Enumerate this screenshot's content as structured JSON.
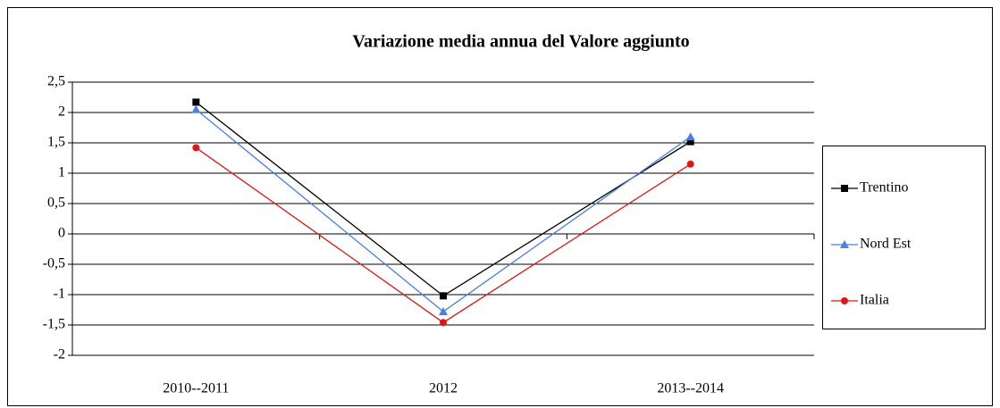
{
  "chart_data": {
    "type": "line",
    "title": "Variazione media annua del Valore aggiunto",
    "categories": [
      "2010--2011",
      "2012",
      "2013--2014"
    ],
    "series": [
      {
        "name": "Trentino",
        "color": "#000000",
        "marker": "square",
        "values": [
          2.17,
          -1.02,
          1.52
        ]
      },
      {
        "name": "Nord Est",
        "color": "#4a7fe6",
        "marker": "triangle",
        "values": [
          2.05,
          -1.28,
          1.6
        ]
      },
      {
        "name": "Italia",
        "color": "#e01515",
        "marker": "circle",
        "values": [
          1.42,
          -1.46,
          1.15
        ]
      }
    ],
    "ylim": [
      -2,
      2.5
    ],
    "yticks": [
      -2,
      {
        "value": -1.5,
        "label": "-1,5"
      },
      -1,
      {
        "value": -0.5,
        "label": "-0,5"
      },
      0,
      {
        "value": 0.5,
        "label": "0,5"
      },
      1,
      {
        "value": 1.5,
        "label": "1,5"
      },
      2,
      {
        "value": 2.5,
        "label": "2,5"
      }
    ],
    "grid": true,
    "legend": "right"
  }
}
